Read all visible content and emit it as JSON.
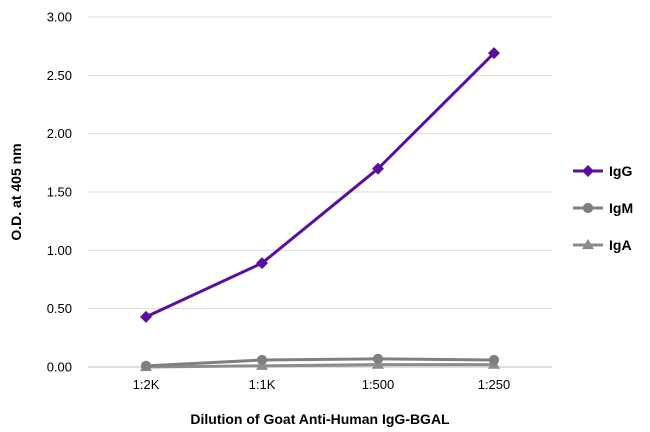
{
  "chart_data": {
    "type": "line",
    "categories": [
      "1:2K",
      "1:1K",
      "1:500",
      "1:250"
    ],
    "series": [
      {
        "name": "IgG",
        "values": [
          0.43,
          0.89,
          1.7,
          2.69
        ],
        "color": "#5a0fa0",
        "marker": "diamond"
      },
      {
        "name": "IgM",
        "values": [
          0.01,
          0.06,
          0.07,
          0.06
        ],
        "color": "#7f7f7f",
        "marker": "circle"
      },
      {
        "name": "IgA",
        "values": [
          0.0,
          0.01,
          0.02,
          0.02
        ],
        "color": "#8c8c8c",
        "marker": "triangle"
      }
    ],
    "xlabel": "Dilution of Goat Anti-Human IgG-BGAL",
    "ylabel": "O.D. at 405 nm",
    "ylim": [
      0,
      3
    ],
    "yticks": [
      "0.00",
      "0.50",
      "1.00",
      "1.50",
      "2.00",
      "2.50",
      "3.00"
    ],
    "grid": true,
    "legend_position": "right"
  }
}
